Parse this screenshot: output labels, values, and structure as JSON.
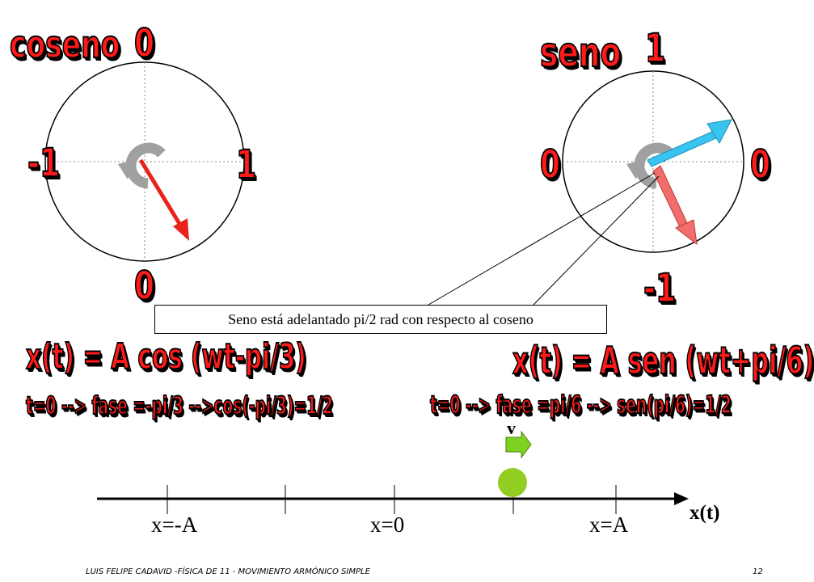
{
  "left_circle": {
    "title": "coseno",
    "top": "0",
    "bottom": "0",
    "left": "-1",
    "right": "1",
    "vector_color": "#e8231c"
  },
  "right_circle": {
    "title": "seno",
    "top": "1",
    "bottom": "-1",
    "left": "0",
    "right": "0",
    "sine_vector_color": "#38c4f0",
    "cosine_vector_color": "#f26d6d"
  },
  "callout": "Seno está adelantado pi/2 rad con respecto al coseno",
  "equations": {
    "left_main": "x(t) = A cos (wt-pi/3)",
    "left_sub": "t=0 --> fase =-pi/3 -->cos(-pi/3)=1/2",
    "right_main": "x(t) = A sen (wt+pi/6)",
    "right_sub": "t=0 --> fase =pi/6 --> sen(pi/6)=1/2"
  },
  "axis": {
    "label_neg": "x=-A",
    "label_zero": "x=0",
    "label_pos": "x=A",
    "axis_name": "x(t)",
    "velocity_label": "v",
    "ball_color": "#92cd21",
    "velocity_arrow_color": "#7ed321"
  },
  "footer": {
    "text": "LUIS FELIPE CADAVID -FÍSICA DE 11 - MOVIMIENTO ARMÓNICO SIMPLE",
    "page": "12"
  }
}
